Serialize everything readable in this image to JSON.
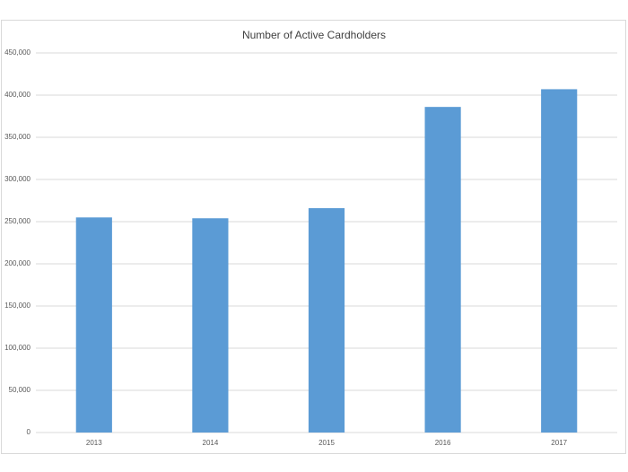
{
  "chart_data": {
    "type": "bar",
    "title": "Number of Active Cardholders",
    "categories": [
      "2013",
      "2014",
      "2015",
      "2016",
      "2017"
    ],
    "values": [
      255000,
      254000,
      266000,
      386000,
      407000
    ],
    "color": "#5b9bd5",
    "ylim": [
      0,
      450000
    ],
    "yticks": [
      0,
      {
        "value": 50000,
        "label": "50,000"
      },
      {
        "value": 100000,
        "label": "100,000"
      },
      {
        "value": 150000,
        "label": "150,000"
      },
      {
        "value": 200000,
        "label": "200,000"
      },
      {
        "value": 250000,
        "label": "250,000"
      },
      {
        "value": 300000,
        "label": "300,000"
      },
      {
        "value": 350000,
        "label": "350,000"
      },
      {
        "value": 400000,
        "label": "400,000"
      },
      {
        "value": 450000,
        "label": "450,000"
      }
    ],
    "grid": true
  }
}
